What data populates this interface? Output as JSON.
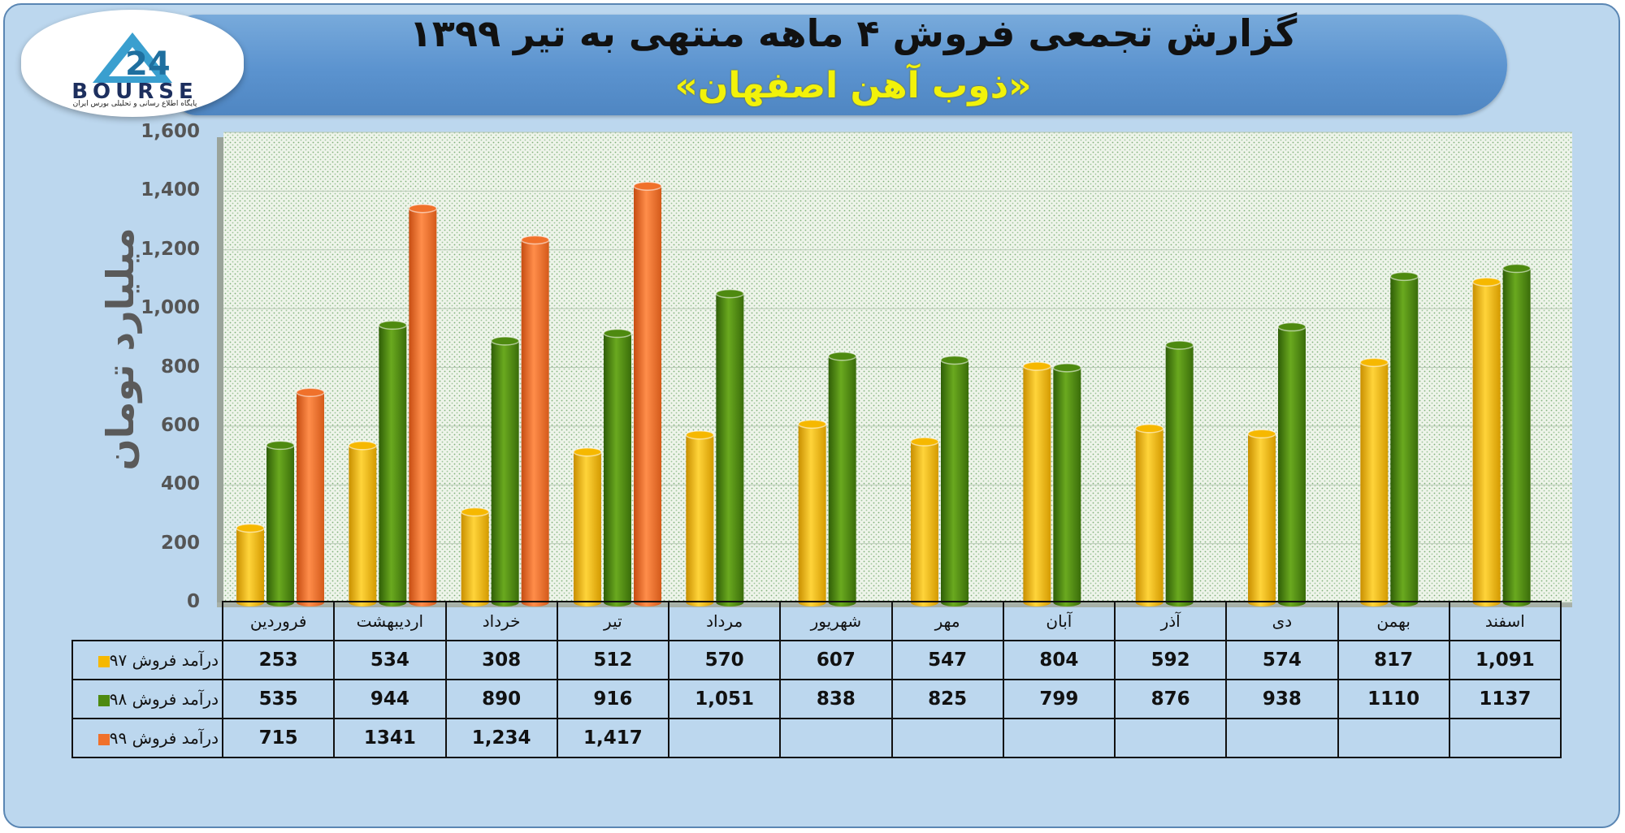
{
  "header": {
    "title": "گزارش تجمعی فروش ۴ ماهه منتهی به تیر ۱۳۹۹",
    "subtitle": "«ذوب آهن اصفهان»"
  },
  "logo": {
    "text": "BOURSE",
    "caption": "پایگاه اطلاع رسانی و تحلیلی بورس ایران"
  },
  "colors": {
    "series97": "#f6b800",
    "series98": "#4e8a10",
    "series99": "#f0712b",
    "plot_bg": "#e9f1e6",
    "frame_bg": "#bcd7ee"
  },
  "chart_data": {
    "type": "bar",
    "ylabel": "میلیارد تومان",
    "ylim": [
      0,
      1600
    ],
    "yticks": [
      "0",
      "200",
      "400",
      "600",
      "800",
      "1,000",
      "1,200",
      "1,400",
      "1,600"
    ],
    "grid": true,
    "categories": [
      "فروردین",
      "اردیبهشت",
      "خرداد",
      "تیر",
      "مرداد",
      "شهریور",
      "مهر",
      "آبان",
      "آذر",
      "دی",
      "بهمن",
      "اسفند"
    ],
    "series": [
      {
        "name": "درآمد فروش ۹۷",
        "values": [
          253,
          534,
          308,
          512,
          570,
          607,
          547,
          804,
          592,
          574,
          817,
          1091
        ],
        "labels": [
          "253",
          "534",
          "308",
          "512",
          "570",
          "607",
          "547",
          "804",
          "592",
          "574",
          "817",
          "1,091"
        ]
      },
      {
        "name": "درآمد فروش ۹۸",
        "values": [
          535,
          944,
          890,
          916,
          1051,
          838,
          825,
          799,
          876,
          938,
          1110,
          1137
        ],
        "labels": [
          "535",
          "944",
          "890",
          "916",
          "1,051",
          "838",
          "825",
          "799",
          "876",
          "938",
          "1110",
          "1137"
        ]
      },
      {
        "name": "درآمد فروش ۹۹",
        "values": [
          715,
          1341,
          1234,
          1417,
          null,
          null,
          null,
          null,
          null,
          null,
          null,
          null
        ],
        "labels": [
          "715",
          "1341",
          "1,234",
          "1,417",
          "",
          "",
          "",
          "",
          "",
          "",
          "",
          ""
        ]
      }
    ]
  }
}
